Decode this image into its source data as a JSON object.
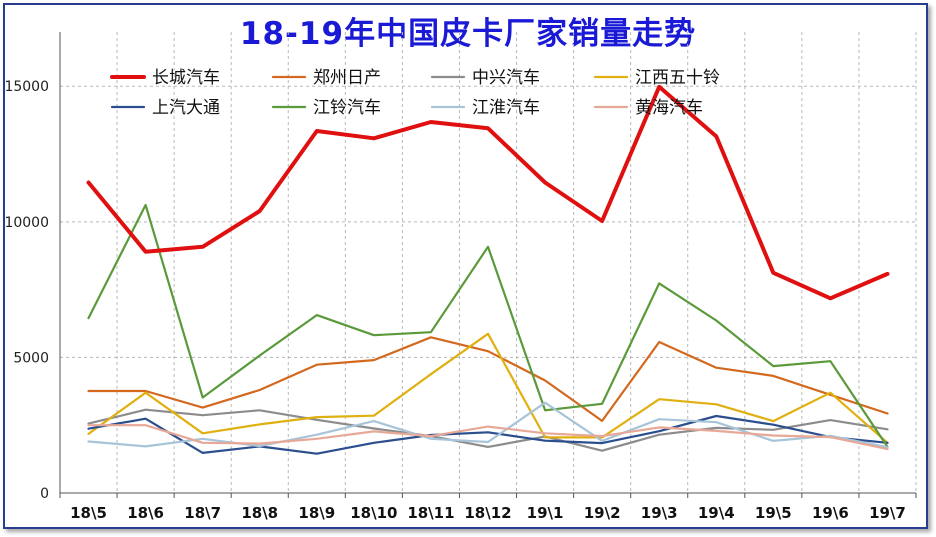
{
  "chart_data": {
    "type": "line",
    "title": "18-19年中国皮卡厂家销量走势",
    "xlabel": "",
    "ylabel": "",
    "ylim": [
      0,
      17000
    ],
    "yticks": [
      0,
      5000,
      10000,
      15000
    ],
    "grid": true,
    "legend_position": "top",
    "categories": [
      "18\\5",
      "18\\6",
      "18\\7",
      "18\\8",
      "18\\9",
      "18\\10",
      "18\\11",
      "18\\12",
      "19\\1",
      "19\\2",
      "19\\3",
      "19\\4",
      "19\\5",
      "19\\6",
      "19\\7"
    ],
    "series": [
      {
        "name": "长城汽车",
        "color": "#e01010",
        "bold": true,
        "values": [
          11450,
          8900,
          9080,
          10400,
          13350,
          13080,
          13680,
          13450,
          11450,
          10030,
          14980,
          13150,
          8120,
          7180,
          8080
        ]
      },
      {
        "name": "郑州日产",
        "color": "#d2691e",
        "values": [
          3760,
          3760,
          3150,
          3800,
          4730,
          4900,
          5740,
          5230,
          4150,
          2660,
          5570,
          4620,
          4320,
          3620,
          2930
        ]
      },
      {
        "name": "中兴汽车",
        "color": "#8c8c8c",
        "values": [
          2560,
          3070,
          2870,
          3050,
          2700,
          2380,
          2100,
          1700,
          2080,
          1560,
          2150,
          2400,
          2330,
          2690,
          2350
        ]
      },
      {
        "name": "江西五十铃",
        "color": "#e0b010",
        "values": [
          2180,
          3700,
          2200,
          2530,
          2800,
          2850,
          4380,
          5870,
          2050,
          2050,
          3460,
          3270,
          2650,
          3700,
          1850
        ]
      },
      {
        "name": "上汽大通",
        "color": "#2a4e8e",
        "values": [
          2370,
          2740,
          1480,
          1720,
          1450,
          1850,
          2140,
          2240,
          1930,
          1840,
          2280,
          2840,
          2520,
          2060,
          1850
        ]
      },
      {
        "name": "江铃汽车",
        "color": "#5a9a3a",
        "values": [
          6450,
          10620,
          3520,
          5070,
          6560,
          5820,
          5930,
          9080,
          3050,
          3290,
          7730,
          6360,
          4680,
          4860,
          1700
        ]
      },
      {
        "name": "江淮汽车",
        "color": "#a8c4d8",
        "values": [
          1900,
          1720,
          2000,
          1730,
          2150,
          2650,
          2000,
          1880,
          3330,
          1920,
          2720,
          2610,
          1920,
          2110,
          1690
        ]
      },
      {
        "name": "黄海汽车",
        "color": "#e8a898",
        "values": [
          2500,
          2500,
          1850,
          1820,
          2000,
          2270,
          2100,
          2450,
          2200,
          2100,
          2420,
          2290,
          2120,
          2060,
          1620
        ]
      }
    ]
  }
}
